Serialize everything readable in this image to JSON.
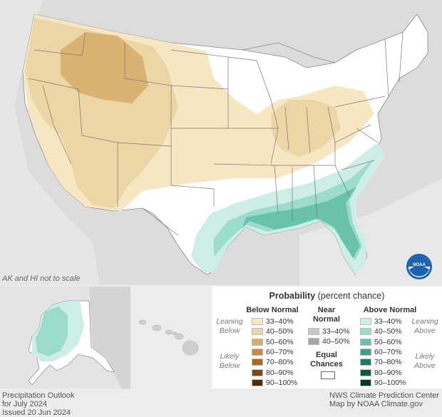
{
  "map": {
    "scale_note": "AK and HI not to scale",
    "logo_text": "NOAA"
  },
  "legend": {
    "title_bold": "Probability",
    "title_rest": "(percent chance)",
    "below_header": "Below Normal",
    "near_header_1": "Near",
    "near_header_2": "Normal",
    "above_header": "Above Normal",
    "equal_1": "Equal",
    "equal_2": "Chances",
    "leaning_below_1": "Leaning",
    "leaning_below_2": "Below",
    "likely_below_1": "Likely",
    "likely_below_2": "Below",
    "leaning_above_1": "Leaning",
    "leaning_above_2": "Above",
    "likely_above_1": "Likely",
    "likely_above_2": "Above",
    "below": [
      {
        "label": "33–40%",
        "color": "#f6e7c2"
      },
      {
        "label": "40–50%",
        "color": "#ecd6a5"
      },
      {
        "label": "50–60%",
        "color": "#d7ad6a"
      },
      {
        "label": "60–70%",
        "color": "#c98a3a"
      },
      {
        "label": "70–80%",
        "color": "#a8681d"
      },
      {
        "label": "80–90%",
        "color": "#7c4a10"
      },
      {
        "label": "90–100%",
        "color": "#4f2c06"
      }
    ],
    "near": [
      {
        "label": "33–40%",
        "color": "#c8c8c8"
      },
      {
        "label": "40–50%",
        "color": "#a6a6a6"
      }
    ],
    "above": [
      {
        "label": "33–40%",
        "color": "#cdeee6"
      },
      {
        "label": "40–50%",
        "color": "#9bdccd"
      },
      {
        "label": "50–60%",
        "color": "#6ac2ad"
      },
      {
        "label": "60–70%",
        "color": "#3e9e8a"
      },
      {
        "label": "70–80%",
        "color": "#1f7a67"
      },
      {
        "label": "80–90%",
        "color": "#0c5847"
      },
      {
        "label": "90–100%",
        "color": "#043a2d"
      }
    ]
  },
  "footer": {
    "left_1": "Precipitation Outlook",
    "left_2": "for July 2024",
    "left_3": "Issued 20 Jun 2024",
    "right_1": "NWS Climate Prediction Center",
    "right_2": "Map by NOAA Climate.gov"
  }
}
